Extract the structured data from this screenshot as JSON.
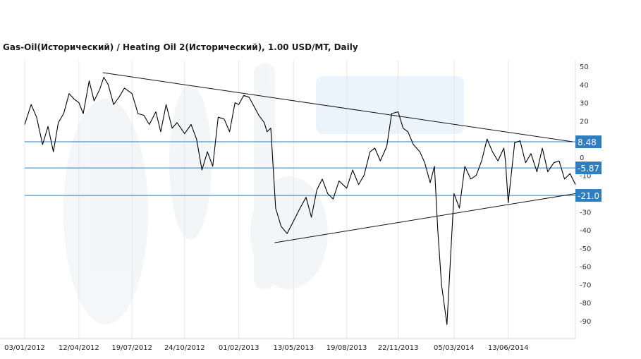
{
  "chart_data": {
    "type": "line",
    "title": "Gas-Oil(Исторический) / Heating Oil 2(Исторический), 1.00 USD/MT, Daily",
    "ylim": [
      -95,
      53
    ],
    "yticks": [
      50,
      40,
      30,
      20,
      10,
      0,
      -10,
      -20,
      -30,
      -40,
      -50,
      -60,
      -70,
      -80,
      -90
    ],
    "xticks": [
      "03/01/2012",
      "12/04/2012",
      "19/07/2012",
      "24/10/2012",
      "01/02/2013",
      "13/05/2013",
      "19/08/2013",
      "22/11/2013",
      "05/03/2014",
      "13/06/2014"
    ],
    "xrange": [
      "2012-01-03",
      "2014-10-15"
    ],
    "grid": "vertical",
    "horizontal_levels": [
      {
        "label": "8.48",
        "value": 8.48
      },
      {
        "label": "-5.87",
        "value": -5.87
      },
      {
        "label": "-21.0",
        "value": -21.0
      }
    ],
    "trendlines": [
      {
        "from": [
          "2012-05-26",
          46.5
        ],
        "to": [
          "2014-10-10",
          8.5
        ]
      },
      {
        "from": [
          "2013-04-08",
          -47
        ],
        "to": [
          "2014-10-15",
          -20
        ]
      }
    ],
    "series": [
      {
        "x": [
          "2012-01-03",
          "2012-01-15",
          "2012-01-25",
          "2012-02-05",
          "2012-02-15",
          "2012-02-25",
          "2012-03-05",
          "2012-03-15",
          "2012-03-25",
          "2012-04-03",
          "2012-04-12",
          "2012-04-20",
          "2012-05-01",
          "2012-05-10",
          "2012-05-20",
          "2012-05-28",
          "2012-06-05",
          "2012-06-15",
          "2012-06-25",
          "2012-07-05",
          "2012-07-19",
          "2012-07-30",
          "2012-08-10",
          "2012-08-20",
          "2012-09-01",
          "2012-09-10",
          "2012-09-20",
          "2012-10-01",
          "2012-10-10",
          "2012-10-24",
          "2012-11-05",
          "2012-11-15",
          "2012-11-25",
          "2012-12-05",
          "2012-12-15",
          "2012-12-25",
          "2013-01-05",
          "2013-01-15",
          "2013-01-25",
          "2013-02-01",
          "2013-02-10",
          "2013-02-20",
          "2013-03-01",
          "2013-03-10",
          "2013-03-20",
          "2013-03-25",
          "2013-04-01",
          "2013-04-10",
          "2013-04-20",
          "2013-05-01",
          "2013-05-13",
          "2013-05-25",
          "2013-06-05",
          "2013-06-15",
          "2013-06-25",
          "2013-07-05",
          "2013-07-15",
          "2013-07-25",
          "2013-08-05",
          "2013-08-19",
          "2013-08-30",
          "2013-09-10",
          "2013-09-20",
          "2013-10-01",
          "2013-10-10",
          "2013-10-20",
          "2013-11-01",
          "2013-11-10",
          "2013-11-22",
          "2013-12-01",
          "2013-12-10",
          "2013-12-20",
          "2014-01-01",
          "2014-01-10",
          "2014-01-20",
          "2014-01-28",
          "2014-02-03",
          "2014-02-10",
          "2014-02-20",
          "2014-03-05",
          "2014-03-15",
          "2014-03-25",
          "2014-04-05",
          "2014-04-15",
          "2014-04-25",
          "2014-05-05",
          "2014-05-15",
          "2014-05-25",
          "2014-06-05",
          "2014-06-08",
          "2014-06-13",
          "2014-06-25",
          "2014-07-05",
          "2014-07-15",
          "2014-07-25",
          "2014-08-05",
          "2014-08-15",
          "2014-08-25",
          "2014-09-05",
          "2014-09-15",
          "2014-09-25",
          "2014-10-05",
          "2014-10-15"
        ],
        "y": [
          18,
          29,
          22,
          7,
          17,
          3,
          19,
          24,
          35,
          32,
          30,
          24,
          42,
          31,
          37,
          44,
          40,
          29,
          33,
          38,
          35,
          24,
          23,
          18,
          25,
          14,
          29,
          16,
          19,
          13,
          18,
          10,
          -7,
          3,
          -5,
          22,
          21,
          14,
          30,
          29,
          34,
          33,
          28,
          23,
          19,
          14,
          16,
          -28,
          -38,
          -42,
          -35,
          -28,
          -22,
          -33,
          -18,
          -12,
          -20,
          -23,
          -13,
          -17,
          -7,
          -15,
          -10,
          3,
          5,
          -2,
          6,
          24,
          25,
          16,
          14,
          7,
          3,
          -3,
          -14,
          -5,
          -40,
          -70,
          -92,
          -20,
          -28,
          -5,
          -12,
          -10,
          -2,
          10,
          3,
          -2,
          5,
          -2,
          -25,
          8,
          9,
          -3,
          2,
          -8,
          5,
          -8,
          -3,
          -2,
          -12,
          -9,
          -15
        ]
      }
    ]
  }
}
